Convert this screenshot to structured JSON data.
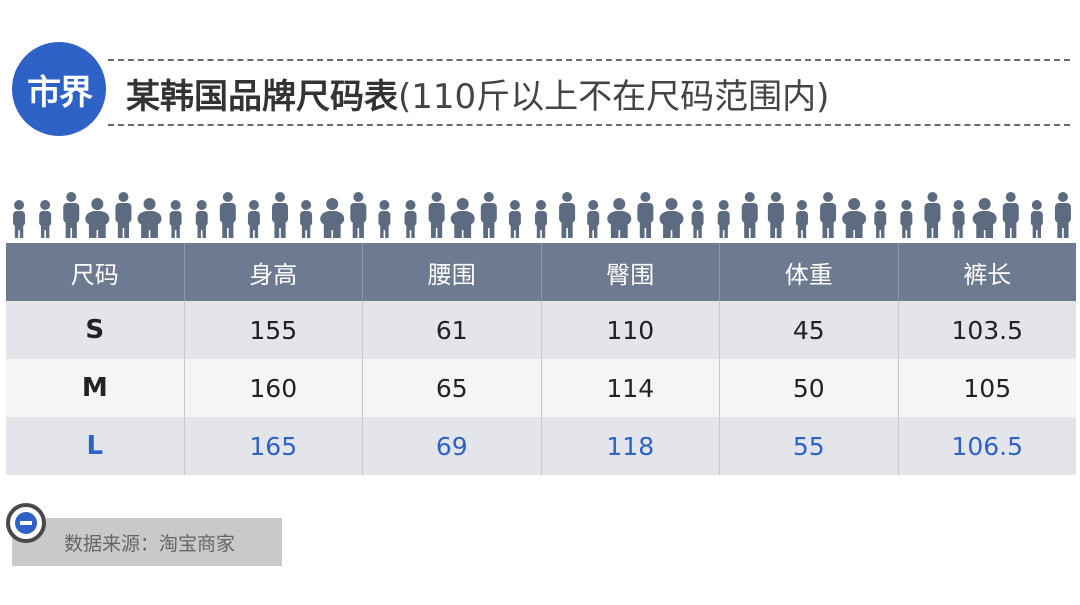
{
  "logo": {
    "text": "市界"
  },
  "title": {
    "main": "某韩国品牌尺码表",
    "sub": "(110斤以上不在尺码范围内)"
  },
  "table": {
    "headers": [
      "尺码",
      "身高",
      "腰围",
      "臀围",
      "体重",
      "裤长"
    ],
    "rows": [
      [
        "S",
        "155",
        "61",
        "110",
        "45",
        "103.5"
      ],
      [
        "M",
        "160",
        "65",
        "114",
        "50",
        "105"
      ],
      [
        "L",
        "165",
        "69",
        "118",
        "55",
        "106.5"
      ]
    ]
  },
  "source": {
    "text": "数据来源：淘宝商家"
  },
  "colors": {
    "accent": "#2f62c6",
    "header_bg": "#6d7a8f",
    "people": "#5d6b80"
  },
  "icons": {
    "people_row": "people-silhouettes-icon",
    "source": "minus-circle-icon"
  }
}
